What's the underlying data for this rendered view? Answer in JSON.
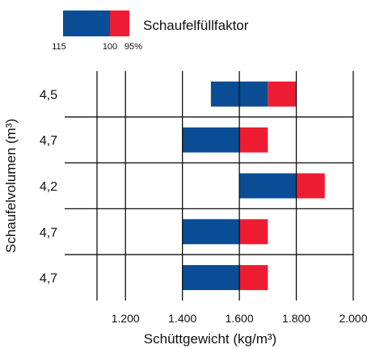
{
  "chart_data": {
    "type": "bar",
    "subtype": "horizontal-floating-range",
    "legend": {
      "title": "Schaufelfüllfaktor",
      "tick_labels": [
        "115",
        "100",
        "95%"
      ],
      "colors": {
        "fill_115_to_100": "#0a4d94",
        "fill_100_to_95": "#ee1c33"
      },
      "placement": "top"
    },
    "xlabel": "Schüttgewicht (kg/m³)",
    "ylabel": "Schaufelvolumen (m³)",
    "xlim": [
      1100,
      2000
    ],
    "x_tick_values": [
      1200,
      1400,
      1600,
      1800,
      2000
    ],
    "x_tick_labels": [
      "1.200",
      "1.400",
      "1.600",
      "1.800",
      "2.000"
    ],
    "categories": [
      "4,5",
      "4,7",
      "4,2",
      "4,7",
      "4,7"
    ],
    "series": [
      {
        "name": "115",
        "range": "115–100",
        "color": "#0a4d94",
        "start": [
          1500,
          1400,
          1600,
          1400,
          1400
        ],
        "end": [
          1700,
          1600,
          1800,
          1600,
          1600
        ]
      },
      {
        "name": "100",
        "range": "100–95%",
        "color": "#ee1c33",
        "start": [
          1700,
          1600,
          1800,
          1600,
          1600
        ],
        "end": [
          1800,
          1700,
          1900,
          1700,
          1700
        ]
      }
    ],
    "grid": true
  }
}
